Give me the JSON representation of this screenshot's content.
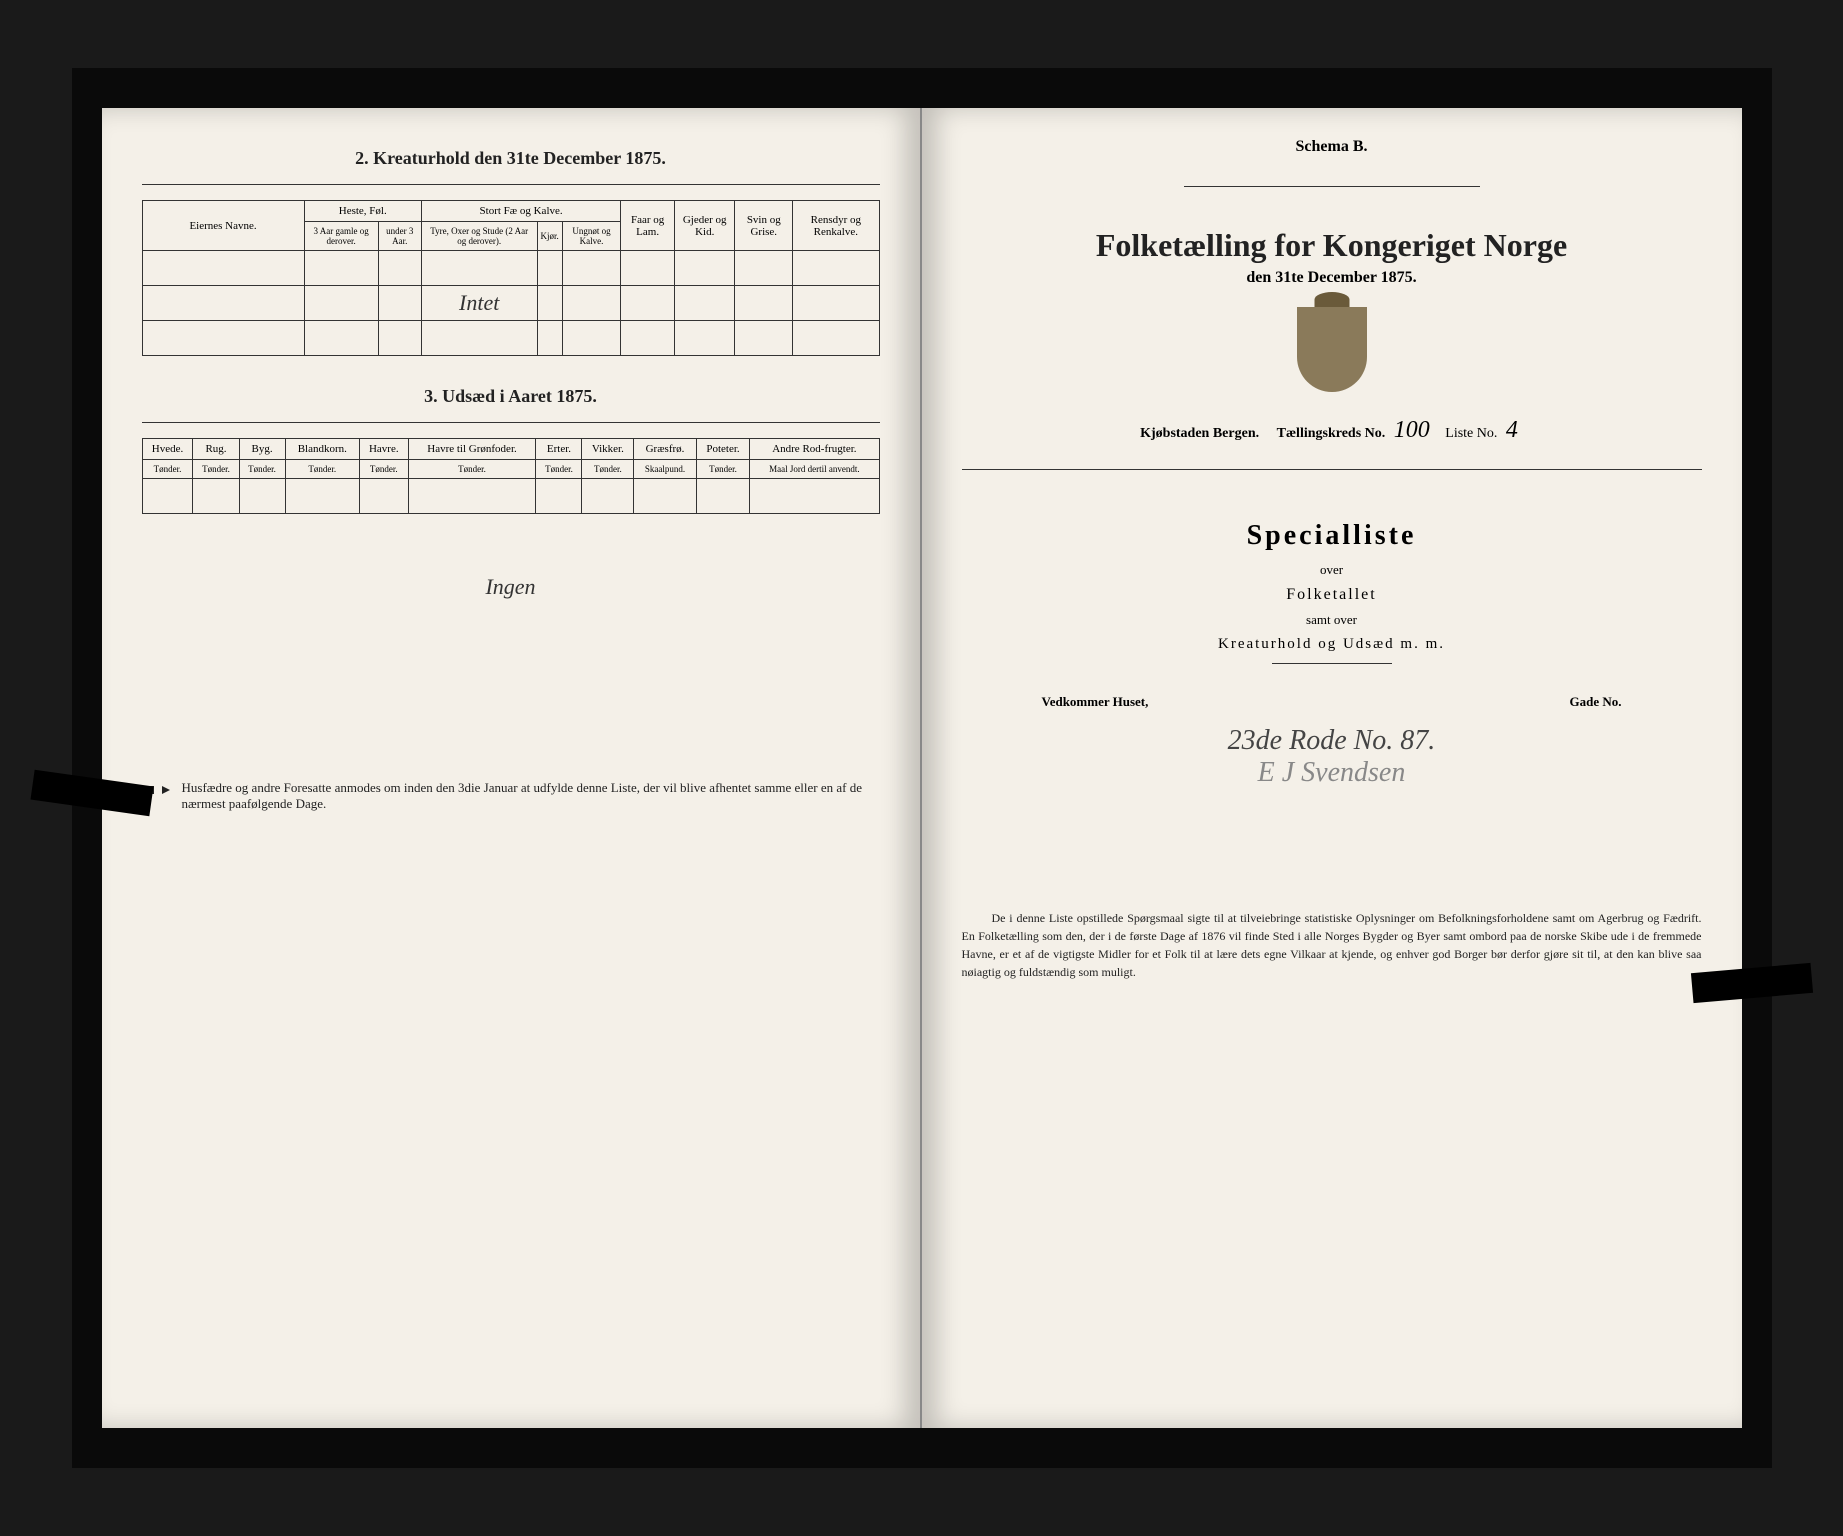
{
  "left": {
    "section2_title": "2. Kreaturhold den 31te December 1875.",
    "table2": {
      "col_eiernes": "Eiernes Navne.",
      "group_heste": "Heste, Føl.",
      "group_stort": "Stort Fæ og Kalve.",
      "col_faar": "Faar og Lam.",
      "col_gjeder": "Gjeder og Kid.",
      "col_svin": "Svin og Grise.",
      "col_rensdyr": "Rensdyr og Renkalve.",
      "sub_3aar": "3 Aar gamle og derover.",
      "sub_under3": "under 3 Aar.",
      "sub_tyre": "Tyre, Oxer og Stude (2 Aar og derover).",
      "sub_kjor": "Kjør.",
      "sub_ungnot": "Ungnøt og Kalve.",
      "entry": "Intet"
    },
    "section3_title": "3. Udsæd i Aaret 1875.",
    "table3": {
      "cols": [
        "Hvede.",
        "Rug.",
        "Byg.",
        "Blandkorn.",
        "Havre.",
        "Havre til Grønfoder.",
        "Erter.",
        "Vikker.",
        "Græsfrø.",
        "Poteter.",
        "Andre Rod-frugter."
      ],
      "units": [
        "Tønder.",
        "Tønder.",
        "Tønder.",
        "Tønder.",
        "Tønder.",
        "Tønder.",
        "Tønder.",
        "Tønder.",
        "Skaalpund.",
        "Tønder.",
        "Maal Jord dertil anvendt."
      ]
    },
    "ingen": "Ingen",
    "pointer_note": "Husfædre og andre Foresatte anmodes om inden den 3die Januar at udfylde denne Liste, der vil blive afhentet samme eller en af de nærmest paafølgende Dage."
  },
  "right": {
    "schema": "Schema B.",
    "main_title": "Folketælling for Kongeriget Norge",
    "date_line": "den 31te December 1875.",
    "kjobstad": "Kjøbstaden Bergen.",
    "tkreds_label": "Tællingskreds No.",
    "tkreds_val": "100",
    "liste_label": "Liste No.",
    "liste_val": "4",
    "special": "Specialliste",
    "over": "over",
    "folketallet": "Folketallet",
    "samt": "samt over",
    "kreatur": "Kreaturhold og Udsæd m. m.",
    "vedkommer": "Vedkommer Huset,",
    "gade": "Gade No.",
    "rode_line": "23de Rode No. 87.",
    "signature": "E J Svendsen",
    "footer": "De i denne Liste opstillede Spørgsmaal sigte til at tilveiebringe statistiske Oplysninger om Befolkningsforholdene samt om Agerbrug og Fædrift. En Folketælling som den, der i de første Dage af 1876 vil finde Sted i alle Norges Bygder og Byer samt ombord paa de norske Skibe ude i de fremmede Havne, er et af de vigtigste Midler for et Folk til at lære dets egne Vilkaar at kjende, og enhver god Borger bør derfor gjøre sit til, at den kan blive saa nøiagtig og fuldstændig som muligt."
  }
}
